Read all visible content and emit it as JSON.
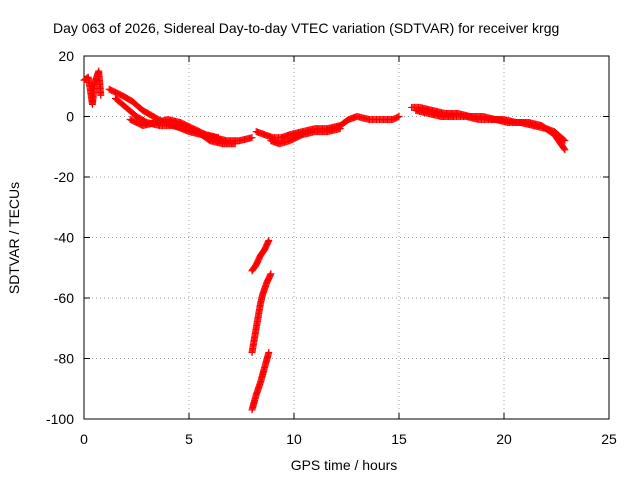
{
  "chart_data": {
    "type": "scatter",
    "title": "Day 063 of 2026, Sidereal Day-to-day VTEC variation (SDTVAR) for receiver krgg",
    "xlabel": "GPS time / hours",
    "ylabel": "SDTVAR / TECUs",
    "xlim": [
      0,
      25
    ],
    "ylim": [
      -100,
      20
    ],
    "xticks": [
      0,
      5,
      10,
      15,
      20,
      25
    ],
    "yticks": [
      -100,
      -80,
      -60,
      -40,
      -20,
      0,
      20
    ],
    "grid": true,
    "marker": "+",
    "color": "#ff0000",
    "series": [
      {
        "name": "SDTVAR",
        "segments": [
          [
            [
              0.0,
              12
            ],
            [
              0.2,
              13
            ],
            [
              0.3,
              9
            ],
            [
              0.4,
              4
            ],
            [
              0.5,
              11
            ],
            [
              0.7,
              15
            ],
            [
              0.8,
              7
            ]
          ],
          [
            [
              1.2,
              9
            ],
            [
              1.8,
              7
            ],
            [
              2.3,
              5
            ],
            [
              2.8,
              2
            ],
            [
              3.3,
              0
            ],
            [
              3.8,
              -2
            ],
            [
              4.3,
              -3
            ],
            [
              5.0,
              -5
            ],
            [
              5.6,
              -6
            ],
            [
              6.2,
              -7
            ],
            [
              6.8,
              -8
            ],
            [
              7.4,
              -8
            ],
            [
              8.0,
              -7
            ]
          ],
          [
            [
              1.5,
              6
            ],
            [
              2.0,
              3
            ],
            [
              2.5,
              0
            ],
            [
              3.0,
              -2
            ],
            [
              3.6,
              -3
            ],
            [
              4.2,
              -3
            ],
            [
              4.8,
              -4
            ],
            [
              5.4,
              -5
            ],
            [
              6.0,
              -8
            ],
            [
              6.6,
              -9
            ],
            [
              7.2,
              -9
            ]
          ],
          [
            [
              2.2,
              -1
            ],
            [
              2.8,
              -3
            ],
            [
              3.4,
              -2
            ],
            [
              4.0,
              -1
            ],
            [
              4.6,
              -2
            ],
            [
              5.2,
              -4
            ],
            [
              5.8,
              -6
            ],
            [
              6.4,
              -7
            ]
          ],
          [
            [
              8.2,
              -5
            ],
            [
              8.6,
              -6
            ],
            [
              9.0,
              -7
            ],
            [
              9.4,
              -7
            ],
            [
              9.8,
              -6
            ],
            [
              10.4,
              -5
            ],
            [
              11.0,
              -4
            ],
            [
              11.6,
              -4
            ],
            [
              12.2,
              -3
            ],
            [
              12.6,
              -1
            ],
            [
              13.0,
              0
            ],
            [
              13.6,
              -1
            ],
            [
              14.2,
              -1
            ],
            [
              14.7,
              -1
            ],
            [
              15.0,
              0
            ]
          ],
          [
            [
              8.9,
              -8
            ],
            [
              9.3,
              -9
            ],
            [
              9.8,
              -8
            ],
            [
              10.4,
              -6
            ],
            [
              11.0,
              -5
            ],
            [
              11.6,
              -5
            ],
            [
              12.2,
              -4
            ]
          ],
          [
            [
              15.6,
              3
            ],
            [
              16.0,
              3
            ],
            [
              16.6,
              2
            ],
            [
              17.2,
              1
            ],
            [
              17.8,
              1
            ],
            [
              18.4,
              0
            ],
            [
              19.0,
              0
            ],
            [
              19.6,
              -1
            ],
            [
              20.2,
              -2
            ],
            [
              20.8,
              -2
            ],
            [
              21.4,
              -3
            ],
            [
              22.0,
              -4
            ],
            [
              22.4,
              -5
            ],
            [
              22.9,
              -8
            ]
          ],
          [
            [
              15.8,
              2
            ],
            [
              16.4,
              1
            ],
            [
              17.0,
              0
            ],
            [
              17.6,
              0
            ],
            [
              18.2,
              0
            ],
            [
              18.8,
              -1
            ],
            [
              19.4,
              -1
            ],
            [
              20.0,
              -1
            ],
            [
              20.6,
              -2
            ],
            [
              21.2,
              -2
            ],
            [
              21.8,
              -3
            ],
            [
              22.4,
              -6
            ],
            [
              22.9,
              -11
            ]
          ],
          [
            [
              8.0,
              -51
            ],
            [
              8.2,
              -49
            ],
            [
              8.4,
              -46
            ],
            [
              8.6,
              -44
            ],
            [
              8.8,
              -41
            ]
          ],
          [
            [
              8.0,
              -78
            ],
            [
              8.1,
              -74
            ],
            [
              8.2,
              -70
            ],
            [
              8.3,
              -66
            ],
            [
              8.4,
              -62
            ],
            [
              8.5,
              -59
            ],
            [
              8.7,
              -55
            ],
            [
              8.9,
              -52
            ]
          ],
          [
            [
              8.0,
              -97
            ],
            [
              8.2,
              -92
            ],
            [
              8.4,
              -88
            ],
            [
              8.6,
              -83
            ],
            [
              8.8,
              -78
            ]
          ]
        ]
      }
    ]
  }
}
